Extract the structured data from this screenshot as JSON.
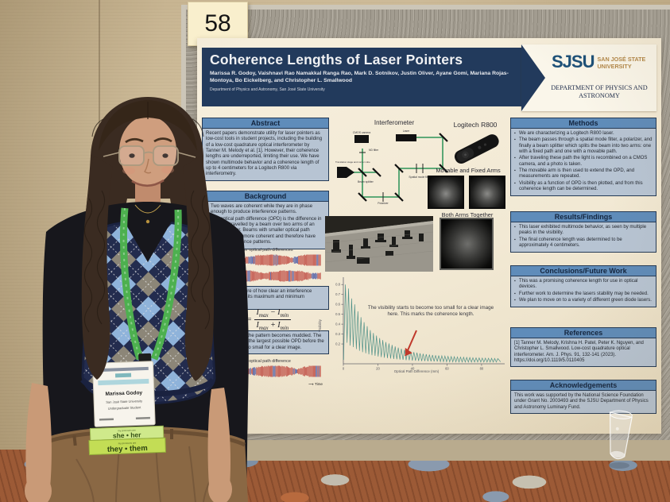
{
  "scene": {
    "poster_number": "58",
    "badge": {
      "name": "Marissa Godoy",
      "affiliation": "San José State University",
      "role": "Undergraduate Student"
    },
    "pronoun_tags": [
      {
        "label": "my pronouns are",
        "value": "she • her"
      },
      {
        "label": "my pronouns are",
        "value": "they • them"
      }
    ]
  },
  "poster": {
    "title": "Coherence Lengths of Laser Pointers",
    "authors": "Marissa R. Godoy, Vaishnavi Rao Namakkal Ranga Rao, Mark D. Sotnikov, Justin Oliver, Ayane Gomi, Mariana Rojas-Montoya, Bo Eickelberg, and Christopher L. Smallwood",
    "affiliation": "Department of Physics and Astronomy, San José State University",
    "logo": {
      "acronym": "SJSU",
      "university": "SAN JOSÉ STATE UNIVERSITY",
      "department": "DEPARTMENT OF PHYSICS AND ASTRONOMY"
    },
    "sections": {
      "abstract": {
        "title": "Abstract",
        "body": "Recent papers demonstrate utility for laser pointers as low-cost tools in student projects, including the building of a low-cost quadrature optical interferometer by Tanner M. Melody et al. [1]. However, their coherence lengths are underreported, limiting their use. We have shown multimode behavior and a coherence length of up to 4 centimeters for a Logitech R800 via interferometry."
      },
      "background": {
        "title": "Background",
        "bullets": [
          "Two waves are coherent while they are in phase enough to produce interference patterns.",
          "The optical path difference (OPD) is the difference in distance travelled by a beam over two arms of an interferometer. Beams with smaller optical path differences are more coherent and therefore have clearer interference patterns."
        ]
      },
      "visibility_note": "Visibility is a measure of how clear an interference pattern is based on its maximum and minimum intensities.",
      "formula": {
        "lhs": "V =",
        "numerator": "I[max] − I[min]",
        "denominator": "I[max] + I[min]"
      },
      "opd_note": "As OPD increases, the pattern becomes muddied. The coherence length is the largest possible OPD before the visibility becomes too small for a clear image.",
      "methods": {
        "title": "Methods",
        "bullets": [
          "We are characterizing a Logitech R800 laser.",
          "The beam passes through a spatial mode filter, a polarizer, and finally a beam splitter which splits the beam into two arms: one with a fixed path and one with a movable path.",
          "After traveling these path the light is recombined on a CMOS camera, and a photo is taken.",
          "The movable arm is then used to extend the OPD, and measurements are repeated.",
          "Visibility as a function of OPD is then plotted, and from this coherence length can be determined."
        ]
      },
      "results": {
        "title": "Results/Findings",
        "bullets": [
          "This laser exhibited multimode behavior, as seen by multiple peaks in the visibility.",
          "The final coherence length was determined to be approximately 4 centimeters."
        ]
      },
      "conclusions": {
        "title": "Conclusions/Future Work",
        "bullets": [
          "This was a promising coherence length for use in optical devices.",
          "Further work to determine the lasers stability may be needed.",
          "We plan to move on to a variety of different green diode lasers."
        ]
      },
      "references": {
        "title": "References",
        "body": "[1] Tanner M. Melody, Krishna H. Patel, Peter K. Nguyen, and Christopher L. Smallwood. Low-cost quadrature optical interferometer. Am. J. Phys. 91, 132-141 (2023). https://doi.org/10.1119/5.0110405"
      },
      "acknowledgements": {
        "title": "Acknowledgements",
        "body": "This work was supported by the National Science Foundation under Grant No. 2003493 and the SJSU Department of Physics and Astronomy Luminary Fund."
      }
    }
  },
  "figures": {
    "interferometer": {
      "title": "Interferometer",
      "labels": [
        "CMOS camera",
        "ND filter",
        "Laser",
        "Translation stage and corner cube",
        "Beam splitter",
        "Spatial mode filter",
        "Polarizer"
      ]
    },
    "laser_label": "Logitech R800",
    "arms_label": "Movable and Fixed Arms",
    "both_label": "Both Arms Together",
    "wave_small_caption": "Smaller optical path differences",
    "wave_large_caption": "Larger optical path difference",
    "time_label": "Time",
    "wave_colors": [
      "#bb4038",
      "#4150a0"
    ]
  },
  "chart_data": {
    "type": "line",
    "title": "",
    "xlabel": "Optical Path Difference (mm)",
    "ylabel": "Visibility",
    "xlim": [
      0,
      92
    ],
    "ylim": [
      0,
      0.85
    ],
    "xticks": [
      0,
      20,
      40,
      60,
      80
    ],
    "yticks": [
      0.2,
      0.3,
      0.4,
      0.5,
      0.6,
      0.7,
      0.8
    ],
    "grid": false,
    "legend": "none",
    "line_color": "#4f9188",
    "valley_fraction": 0.28,
    "peaks": [
      [
        1.2,
        0.8
      ],
      [
        3,
        0.76
      ],
      [
        4.8,
        0.66
      ],
      [
        6.6,
        0.6
      ],
      [
        8.4,
        0.53
      ],
      [
        10.2,
        0.47
      ],
      [
        12,
        0.42
      ],
      [
        13.8,
        0.38
      ],
      [
        15.6,
        0.34
      ],
      [
        17.4,
        0.31
      ],
      [
        19.2,
        0.285
      ],
      [
        21,
        0.26
      ],
      [
        22.8,
        0.24
      ],
      [
        24.6,
        0.22
      ],
      [
        26.4,
        0.205
      ],
      [
        28.2,
        0.19
      ],
      [
        30,
        0.175
      ],
      [
        31.8,
        0.163
      ],
      [
        33.6,
        0.152
      ],
      [
        35.4,
        0.142
      ],
      [
        37.2,
        0.133
      ],
      [
        39,
        0.125
      ],
      [
        40.8,
        0.118
      ],
      [
        42.6,
        0.112
      ],
      [
        44.4,
        0.106
      ],
      [
        46.2,
        0.101
      ],
      [
        48,
        0.096
      ],
      [
        49.8,
        0.092
      ],
      [
        51.6,
        0.089
      ],
      [
        53.4,
        0.086
      ],
      [
        55.2,
        0.083
      ],
      [
        57,
        0.08
      ],
      [
        58.8,
        0.078
      ],
      [
        60.6,
        0.075
      ],
      [
        62.4,
        0.073
      ],
      [
        64.2,
        0.071
      ],
      [
        66,
        0.069
      ],
      [
        67.8,
        0.067
      ],
      [
        69.6,
        0.066
      ],
      [
        71.4,
        0.064
      ],
      [
        73.2,
        0.063
      ],
      [
        75,
        0.061
      ],
      [
        76.8,
        0.06
      ],
      [
        78.6,
        0.059
      ],
      [
        80.4,
        0.058
      ],
      [
        82.2,
        0.057
      ],
      [
        84,
        0.056
      ],
      [
        85.8,
        0.055
      ],
      [
        87.6,
        0.054
      ],
      [
        89.4,
        0.053
      ]
    ],
    "annotation": {
      "text": "The visibility starts to become too small for a clear image here. This marks the coherence length.",
      "arrow_color": "#c0392b",
      "points_to_x": 40
    }
  }
}
